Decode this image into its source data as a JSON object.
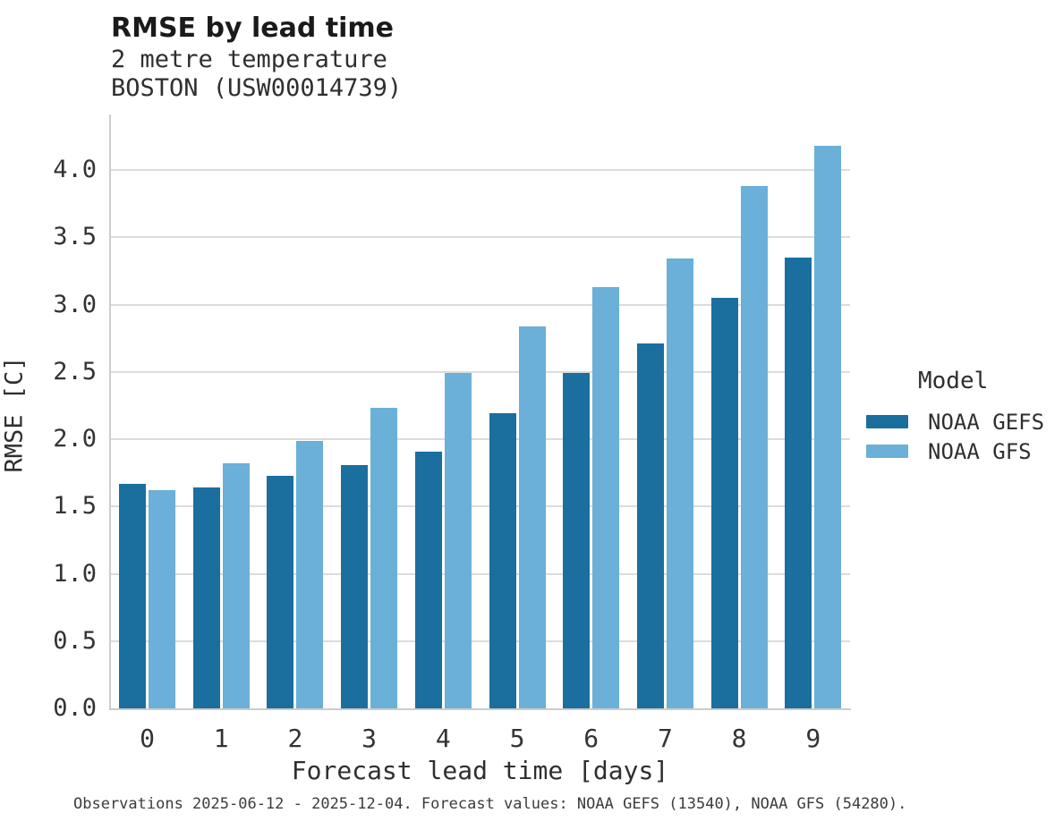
{
  "chart_data": {
    "type": "bar",
    "title": "RMSE by lead time",
    "subtitle": [
      "2 metre temperature",
      "BOSTON (USW00014739)"
    ],
    "categories": [
      "0",
      "1",
      "2",
      "3",
      "4",
      "5",
      "6",
      "7",
      "8",
      "9"
    ],
    "series": [
      {
        "name": "NOAA GEFS",
        "color": "#1a6f9e",
        "values": [
          1.67,
          1.64,
          1.73,
          1.81,
          1.91,
          2.19,
          2.49,
          2.71,
          3.05,
          3.35
        ]
      },
      {
        "name": "NOAA GFS",
        "color": "#6ab0d8",
        "values": [
          1.62,
          1.82,
          1.99,
          2.23,
          2.49,
          2.84,
          3.13,
          3.34,
          3.88,
          4.18
        ]
      }
    ],
    "xlabel": "Forecast lead time [days]",
    "ylabel": "RMSE [C]",
    "ylim": [
      0.0,
      4.4
    ],
    "yticks": [
      0.0,
      0.5,
      1.0,
      1.5,
      2.0,
      2.5,
      3.0,
      3.5,
      4.0
    ],
    "grid": "horizontal",
    "legend_title": "Model",
    "legend_position": "right",
    "caption": "Observations 2025-06-12 - 2025-12-04. Forecast values: NOAA GEFS (13540), NOAA GFS (54280)."
  }
}
